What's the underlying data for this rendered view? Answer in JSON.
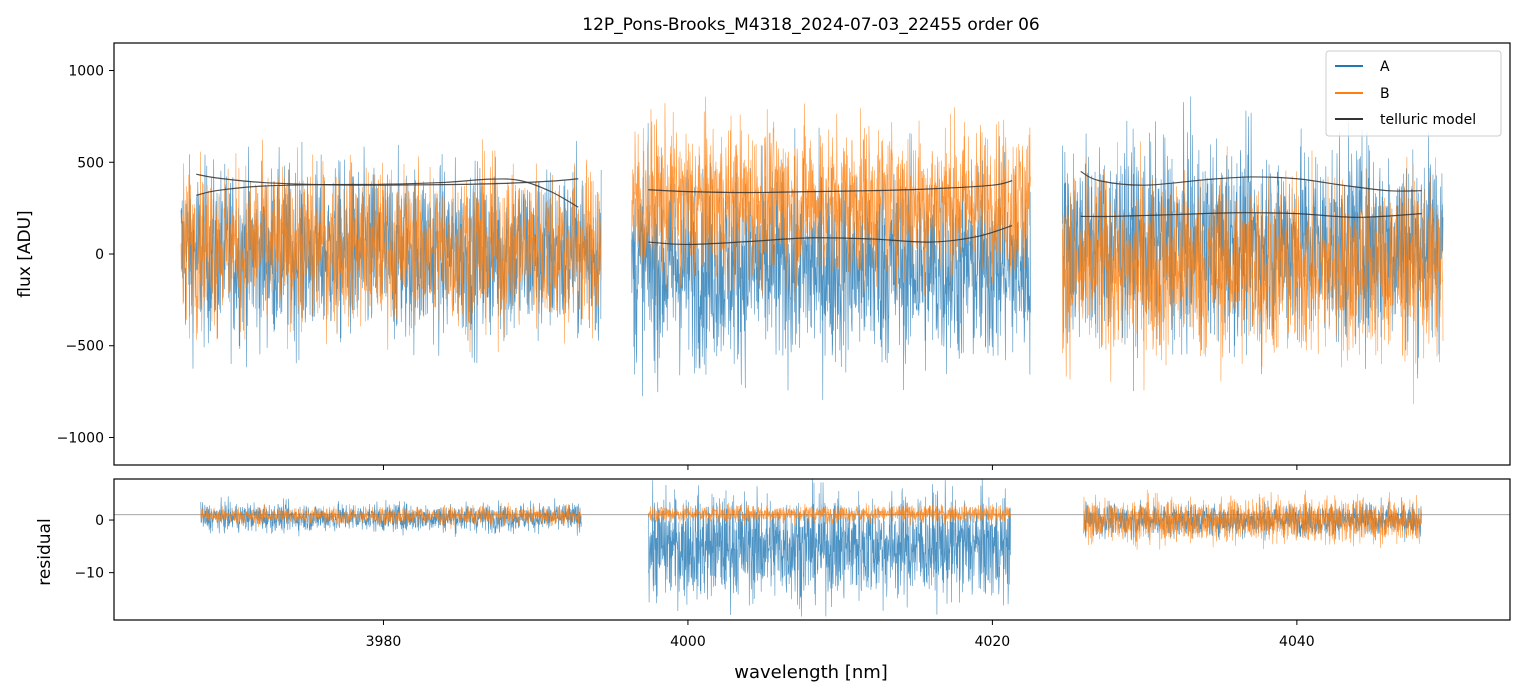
{
  "chart_data": {
    "title": "12P_Pons-Brooks_M4318_2024-07-03_22455  order 06",
    "xlabel": "wavelength [nm]",
    "xlim": [
      3962.3,
      4054.0
    ],
    "xticks": [
      3980,
      4000,
      4020,
      4040
    ],
    "colors": {
      "A": "#1f77b4",
      "B": "#ff7f0e",
      "model": "#333333",
      "refline": "#888888"
    },
    "panels": [
      {
        "id": "flux",
        "type": "line",
        "ylabel": "flux [ADU]",
        "ylim": [
          -1150,
          1150
        ],
        "yticks": [
          -1000,
          -500,
          0,
          500,
          1000
        ],
        "ytick_labels": [
          "−1000",
          "−500",
          "0",
          "500",
          "1000"
        ],
        "legend": {
          "position": "top-right",
          "entries": [
            {
              "key": "A",
              "label": "A"
            },
            {
              "key": "B",
              "label": "B"
            },
            {
              "key": "model",
              "label": "telluric model"
            }
          ]
        },
        "segments": [
          {
            "x": [
              3966.7,
              3994.3
            ],
            "A_center": 0,
            "A_spread": 620,
            "B_center": 40,
            "B_spread": 560
          },
          {
            "x": [
              3996.3,
              4022.5
            ],
            "A_center": -70,
            "A_spread": 700,
            "B_center": 280,
            "B_spread": 560
          },
          {
            "x": [
              4024.6,
              4049.6
            ],
            "A_center": 60,
            "A_spread": 700,
            "B_center": -80,
            "B_spread": 640
          }
        ],
        "telluric_model": [
          {
            "x": [
              3967.7,
              3969,
              3972,
              3976,
              3980,
              3984,
              3988,
              3991,
              3992.8
            ],
            "y": [
              435,
              415,
              390,
              378,
              375,
              378,
              385,
              397,
              410
            ]
          },
          {
            "x": [
              3967.7,
              3969,
              3972,
              3976,
              3980,
              3984,
              3987,
              3989,
              3991,
              3992.8
            ],
            "y": [
              320,
              345,
              370,
              378,
              380,
              390,
              408,
              400,
              340,
              255
            ]
          },
          {
            "x": [
              3997.4,
              4000,
              4004,
              4008,
              4012,
              4016,
              4020,
              4021.3
            ],
            "y": [
              350,
              340,
              335,
              340,
              345,
              355,
              375,
              400
            ]
          },
          {
            "x": [
              3997.4,
              4000,
              4004,
              4008,
              4012,
              4016,
              4019,
              4021.3
            ],
            "y": [
              65,
              52,
              68,
              88,
              82,
              65,
              95,
              155
            ]
          },
          {
            "x": [
              4025.8,
              4027,
              4030,
              4034,
              4037,
              4040,
              4043,
              4046,
              4048.2
            ],
            "y": [
              450,
              400,
              375,
              405,
              420,
              410,
              375,
              345,
              345
            ]
          },
          {
            "x": [
              4025.8,
              4028,
              4032,
              4036,
              4040,
              4044,
              4048.2
            ],
            "y": [
              205,
              205,
              215,
              225,
              220,
              200,
              220
            ]
          }
        ]
      },
      {
        "id": "residual",
        "type": "line",
        "ylabel": "residual",
        "ylim": [
          -19,
          7.8
        ],
        "yticks": [
          0,
          -10
        ],
        "ytick_labels": [
          "0",
          "−10"
        ],
        "refline_y": 1,
        "segments": [
          {
            "x": [
              3968.0,
              3993.0
            ],
            "A_center": 0.5,
            "A_spread": 3.5,
            "B_center": 0.8,
            "B_spread": 2.2
          },
          {
            "x": [
              3997.4,
              4021.2
            ],
            "A_center": -5,
            "A_spread": 13,
            "B_center": 1.2,
            "B_spread": 2.2
          },
          {
            "x": [
              4026.0,
              4048.2
            ],
            "A_center": 0,
            "A_spread": 4,
            "B_center": 0,
            "B_spread": 5.5
          }
        ]
      }
    ]
  }
}
